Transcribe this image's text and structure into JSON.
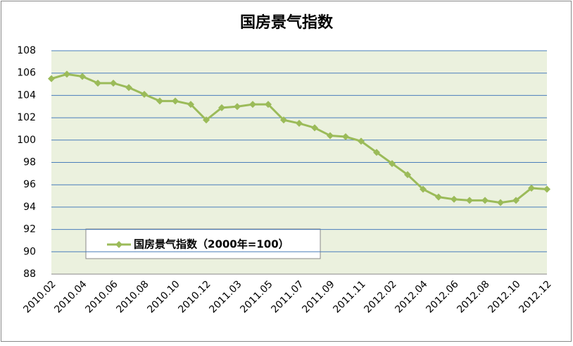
{
  "chart_data": {
    "type": "line",
    "title": "国房景气指数",
    "categories": [
      "2010.02",
      null,
      "2010.04",
      null,
      "2010.06",
      null,
      "2010.08",
      null,
      "2010.10",
      null,
      "2010.12",
      null,
      "2011.03",
      null,
      "2011.05",
      null,
      "2011.07",
      null,
      "2011.09",
      null,
      "2011.11",
      null,
      "2012.02",
      null,
      "2012.04",
      null,
      "2012.06",
      null,
      "2012.08",
      null,
      "2012.10",
      null,
      "2012.12"
    ],
    "series": [
      {
        "name": "国房景气指数（2000年=100）",
        "color": "#9bbb59",
        "values": [
          105.5,
          105.9,
          105.7,
          105.1,
          105.1,
          104.7,
          104.1,
          103.5,
          103.5,
          103.2,
          101.8,
          102.9,
          103.0,
          103.2,
          103.2,
          101.8,
          101.5,
          101.1,
          100.4,
          100.3,
          99.9,
          98.9,
          97.9,
          96.9,
          95.6,
          94.9,
          94.7,
          94.6,
          94.6,
          94.4,
          94.6,
          95.7,
          95.6
        ]
      }
    ],
    "ylim": [
      88,
      108
    ],
    "yticks": [
      88,
      90,
      92,
      94,
      96,
      98,
      100,
      102,
      104,
      106,
      108
    ],
    "grid": true
  }
}
